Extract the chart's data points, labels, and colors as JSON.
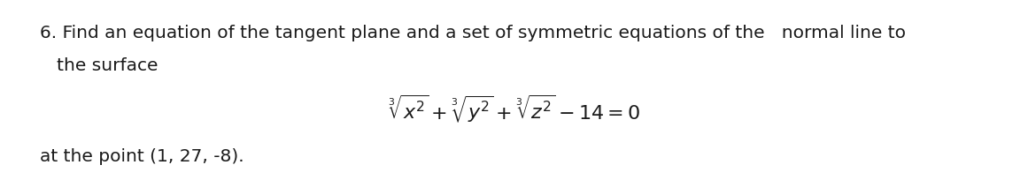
{
  "background_color": "#ffffff",
  "text_line1": "6. Find an equation of the tangent plane and a set of symmetric equations of the   normal line to",
  "text_line2": "   the surface",
  "text_line3": "at the point (1, 27, -8).",
  "formula": "$\\sqrt[3]{x^2} + \\sqrt[3]{y^2} + \\sqrt[3]{z^2} - 14 = 0$",
  "font_size_text": 14.5,
  "font_size_formula": 16,
  "text_color": "#1a1a1a",
  "fig_width": 11.61,
  "fig_height": 2.21,
  "dpi": 100
}
